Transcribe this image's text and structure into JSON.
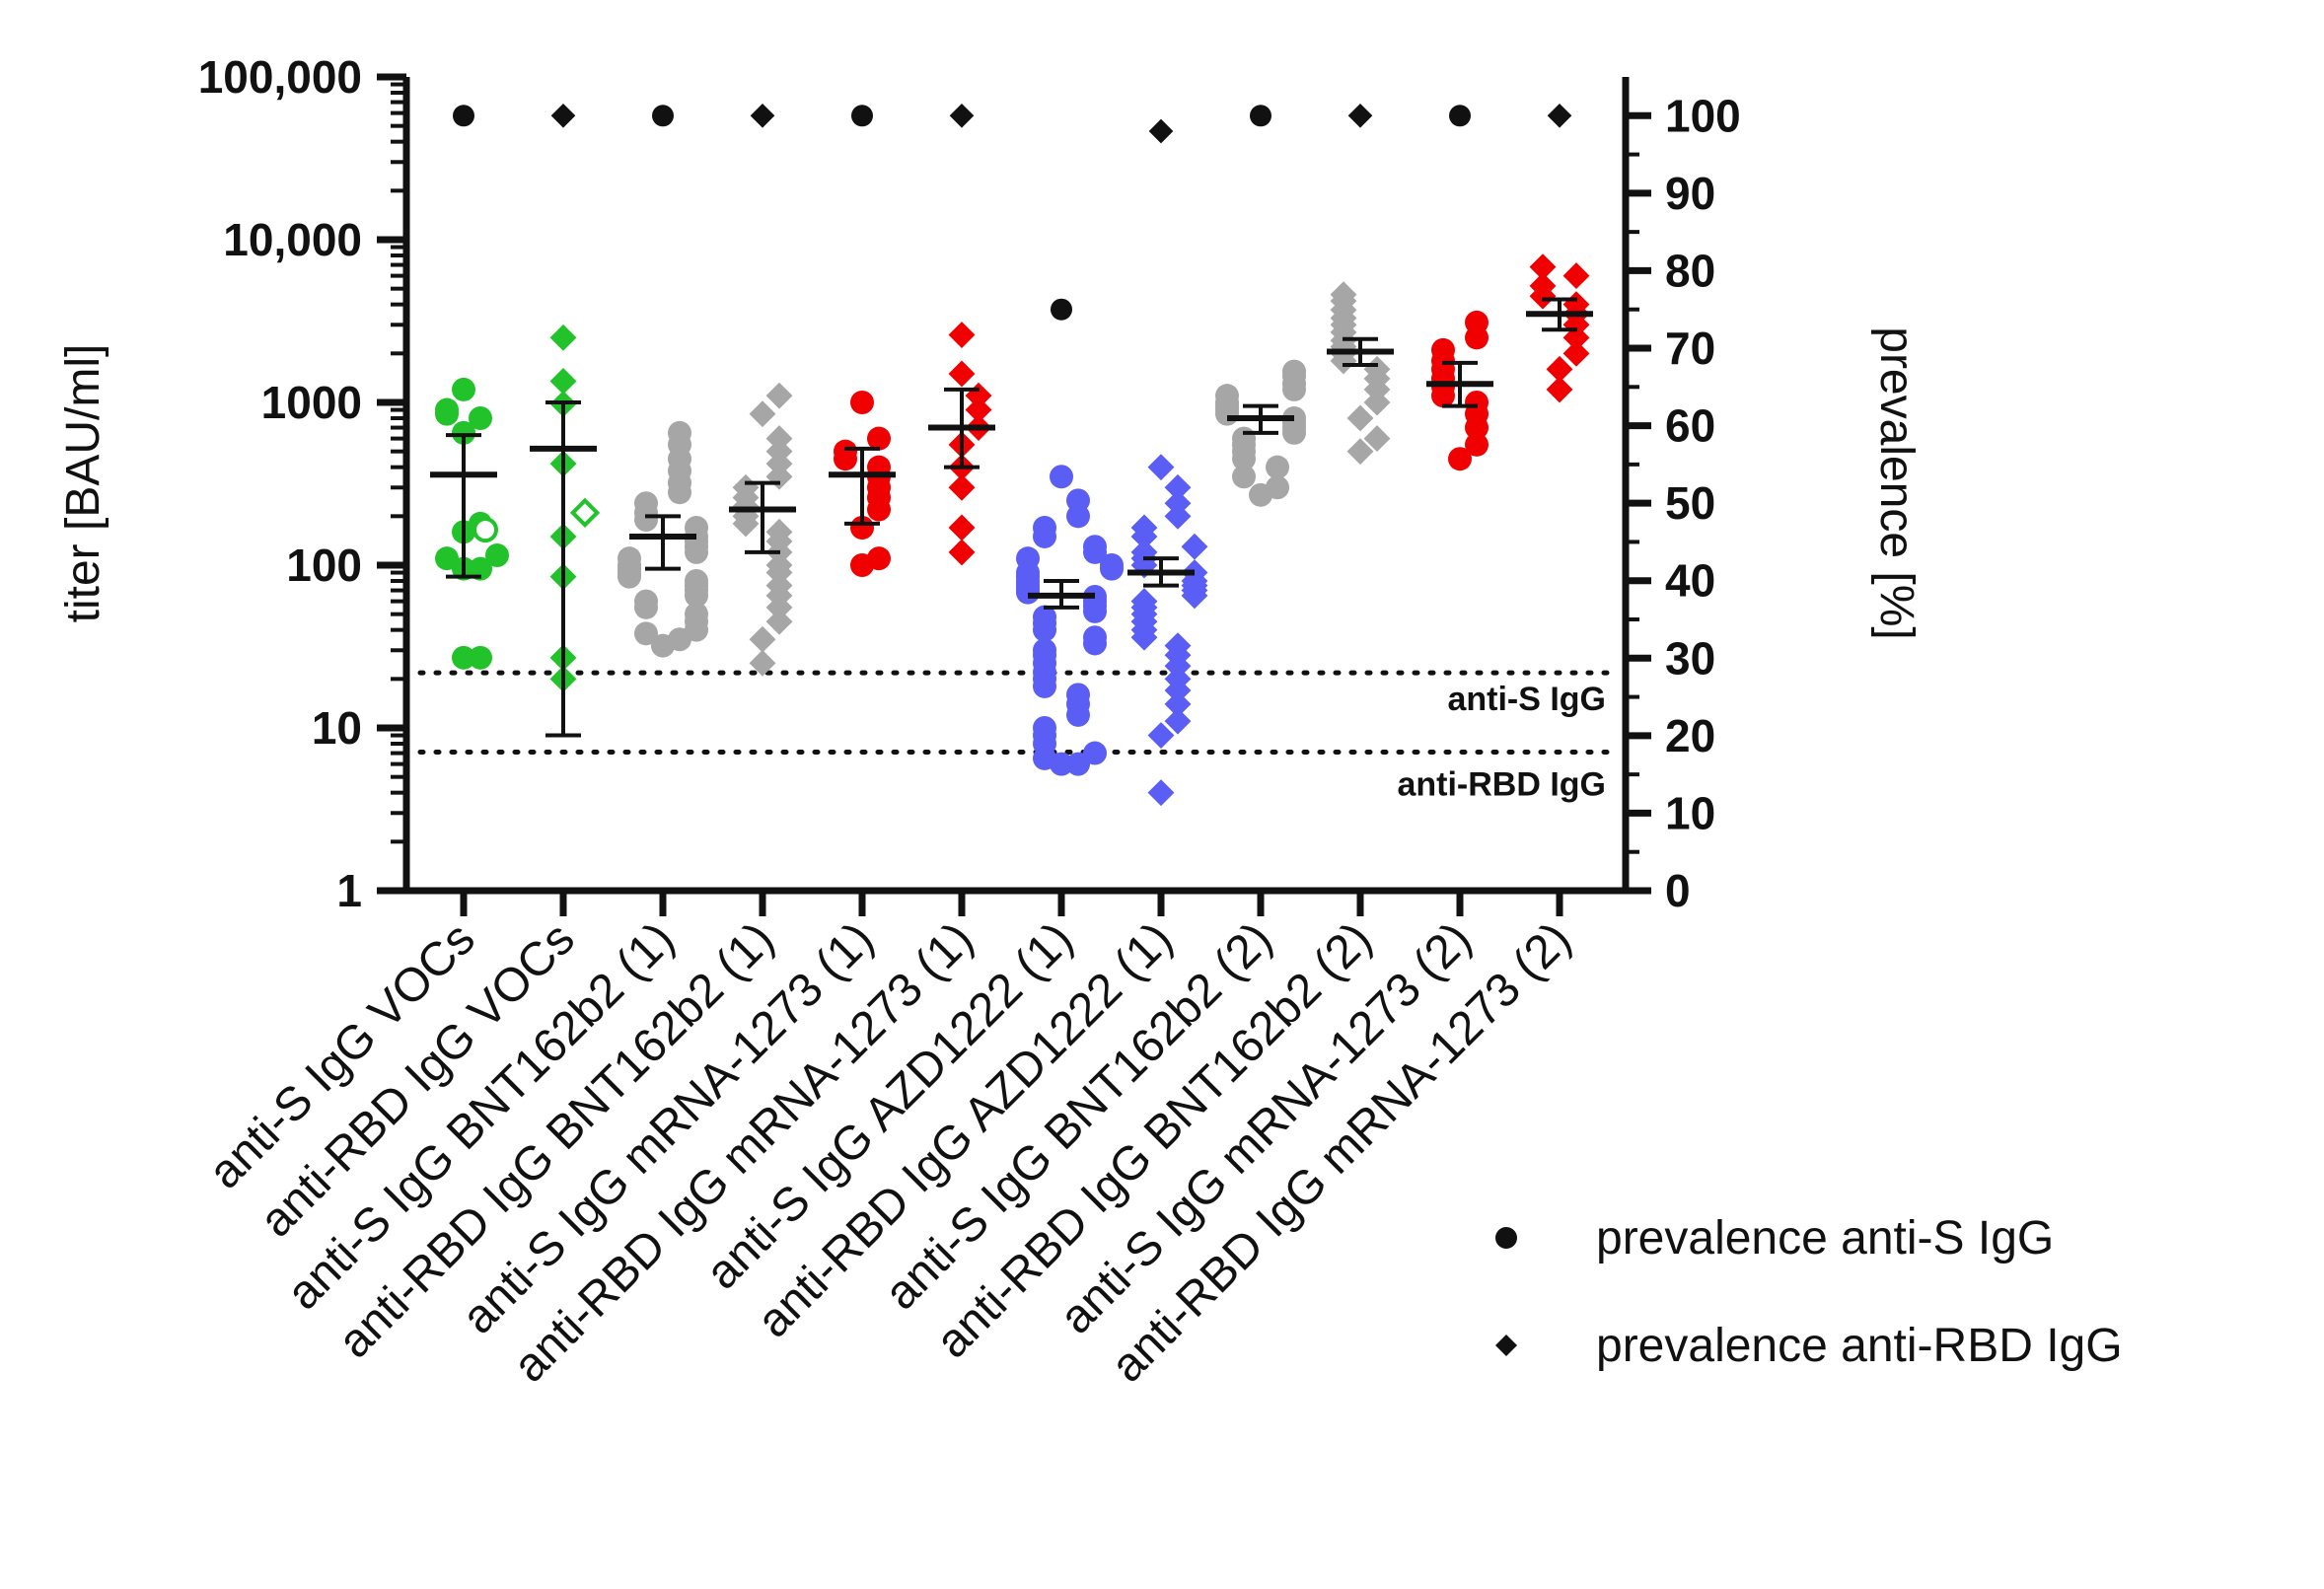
{
  "chart_data": {
    "type": "scatter",
    "title": "",
    "ylabel_left": "titer [BAU/ml]",
    "ylabel_right": "prevalence [%]",
    "y_left_scale": "log10",
    "y_left_lim": [
      1,
      100000
    ],
    "y_left_ticks": [
      {
        "value": 1,
        "label": "1"
      },
      {
        "value": 10,
        "label": "10"
      },
      {
        "value": 100,
        "label": "100"
      },
      {
        "value": 1000,
        "label": "1000"
      },
      {
        "value": 10000,
        "label": "10,000"
      },
      {
        "value": 100000,
        "label": "100,000"
      }
    ],
    "y_right_lim": [
      0,
      105
    ],
    "y_right_ticks": [
      {
        "value": 0,
        "label": "0"
      },
      {
        "value": 10,
        "label": "10"
      },
      {
        "value": 20,
        "label": "20"
      },
      {
        "value": 30,
        "label": "30"
      },
      {
        "value": 40,
        "label": "40"
      },
      {
        "value": 50,
        "label": "50"
      },
      {
        "value": 60,
        "label": "60"
      },
      {
        "value": 70,
        "label": "70"
      },
      {
        "value": 80,
        "label": "80"
      },
      {
        "value": 90,
        "label": "90"
      },
      {
        "value": 100,
        "label": "100"
      }
    ],
    "thresholds": [
      {
        "value": 21.8,
        "label": "anti-S IgG"
      },
      {
        "value": 7.1,
        "label": "anti-RBD IgG"
      }
    ],
    "legend": [
      {
        "marker": "circle",
        "label": "prevalence anti-S IgG"
      },
      {
        "marker": "diamond",
        "label": "prevalence anti-RBD IgG"
      }
    ],
    "groups": [
      {
        "label": "anti-S IgG VOCs",
        "marker": "circle",
        "color": "#22c32a",
        "mean": 360,
        "ci": [
          85,
          630
        ],
        "values": [
          27,
          27,
          95,
          95,
          110,
          115,
          160,
          180,
          650,
          800,
          850,
          900,
          1200
        ],
        "open_values": [
          165
        ],
        "prevalence": 100
      },
      {
        "label": "anti-RBD IgG VOCs",
        "marker": "diamond",
        "color": "#22c32a",
        "mean": 520,
        "ci": [
          9,
          1000
        ],
        "values": [
          20,
          27,
          85,
          150,
          420,
          980,
          1350,
          2500
        ],
        "open_values": [
          210
        ],
        "prevalence": 100
      },
      {
        "label": "anti-S IgG BNT162b2 (1)",
        "marker": "circle",
        "color": "#a6a6a6",
        "mean": 150,
        "ci": [
          95,
          200
        ],
        "values": [
          32,
          35,
          38,
          40,
          45,
          50,
          55,
          60,
          65,
          70,
          75,
          80,
          85,
          90,
          95,
          100,
          110,
          120,
          130,
          140,
          150,
          170,
          190,
          210,
          240,
          280,
          320,
          380,
          450,
          550,
          650
        ],
        "open_values": [],
        "prevalence": 100
      },
      {
        "label": "anti-RBD IgG BNT162b2 (1)",
        "marker": "diamond",
        "color": "#a6a6a6",
        "mean": 220,
        "ci": [
          120,
          320
        ],
        "values": [
          25,
          35,
          45,
          55,
          65,
          75,
          90,
          100,
          120,
          140,
          160,
          180,
          200,
          230,
          260,
          300,
          350,
          420,
          500,
          600,
          850,
          1100
        ],
        "open_values": [],
        "prevalence": 100
      },
      {
        "label": "anti-S IgG mRNA-1273 (1)",
        "marker": "circle",
        "color": "#f00000",
        "mean": 360,
        "ci": [
          180,
          520
        ],
        "values": [
          100,
          110,
          170,
          220,
          260,
          300,
          350,
          400,
          450,
          500,
          600,
          1000
        ],
        "open_values": [],
        "prevalence": 100
      },
      {
        "label": "anti-RBD IgG mRNA-1273 (1)",
        "marker": "diamond",
        "color": "#f00000",
        "mean": 700,
        "ci": [
          400,
          1200
        ],
        "values": [
          120,
          170,
          300,
          400,
          550,
          700,
          900,
          1100,
          1500,
          2600
        ],
        "open_values": [],
        "prevalence": 100
      },
      {
        "label": "anti-S IgG AZD1222 (1)",
        "marker": "circle",
        "color": "#5b5ef5",
        "mean": 65,
        "ci": [
          55,
          80
        ],
        "values": [
          6,
          6,
          6.5,
          7,
          8,
          9,
          10,
          12,
          14,
          16,
          18,
          20,
          22,
          25,
          28,
          30,
          33,
          36,
          40,
          44,
          48,
          52,
          56,
          60,
          64,
          68,
          72,
          76,
          80,
          85,
          90,
          95,
          100,
          110,
          120,
          130,
          150,
          170,
          200,
          250,
          350
        ],
        "open_values": [],
        "prevalence": 75
      },
      {
        "label": "anti-RBD IgG AZD1222 (1)",
        "marker": "diamond",
        "color": "#5b5ef5",
        "mean": 90,
        "ci": [
          75,
          110
        ],
        "values": [
          4,
          9,
          11,
          14,
          17,
          20,
          24,
          28,
          32,
          36,
          40,
          45,
          50,
          55,
          60,
          65,
          70,
          75,
          80,
          90,
          100,
          110,
          120,
          130,
          150,
          170,
          200,
          240,
          300,
          400
        ],
        "open_values": [],
        "prevalence": 98
      },
      {
        "label": "anti-S IgG BNT162b2 (2)",
        "marker": "circle",
        "color": "#a6a6a6",
        "mean": 800,
        "ci": [
          650,
          950
        ],
        "values": [
          270,
          300,
          350,
          400,
          450,
          500,
          550,
          600,
          650,
          700,
          750,
          800,
          850,
          900,
          950,
          1000,
          1100,
          1200,
          1300,
          1450,
          1550
        ],
        "open_values": [],
        "prevalence": 100
      },
      {
        "label": "anti-RBD IgG BNT162b2 (2)",
        "marker": "diamond",
        "color": "#a6a6a6",
        "mean": 2050,
        "ci": [
          1700,
          2450
        ],
        "values": [
          500,
          600,
          800,
          1000,
          1200,
          1400,
          1600,
          1800,
          2000,
          2200,
          2400,
          2700,
          3000,
          3300,
          3700,
          4200,
          4600
        ],
        "open_values": [],
        "prevalence": 100
      },
      {
        "label": "anti-S IgG mRNA-1273 (2)",
        "marker": "circle",
        "color": "#f00000",
        "mean": 1300,
        "ci": [
          950,
          1750
        ],
        "values": [
          450,
          550,
          700,
          850,
          1000,
          1100,
          1250,
          1400,
          1600,
          1800,
          2100,
          2500,
          3100
        ],
        "open_values": [],
        "prevalence": 100
      },
      {
        "label": "anti-RBD IgG mRNA-1273 (2)",
        "marker": "diamond",
        "color": "#f00000",
        "mean": 3500,
        "ci": [
          2800,
          4300
        ],
        "values": [
          1200,
          1600,
          2000,
          2500,
          3000,
          3500,
          4000,
          4500,
          5200,
          6000,
          6800
        ],
        "open_values": [],
        "prevalence": 100
      }
    ]
  }
}
